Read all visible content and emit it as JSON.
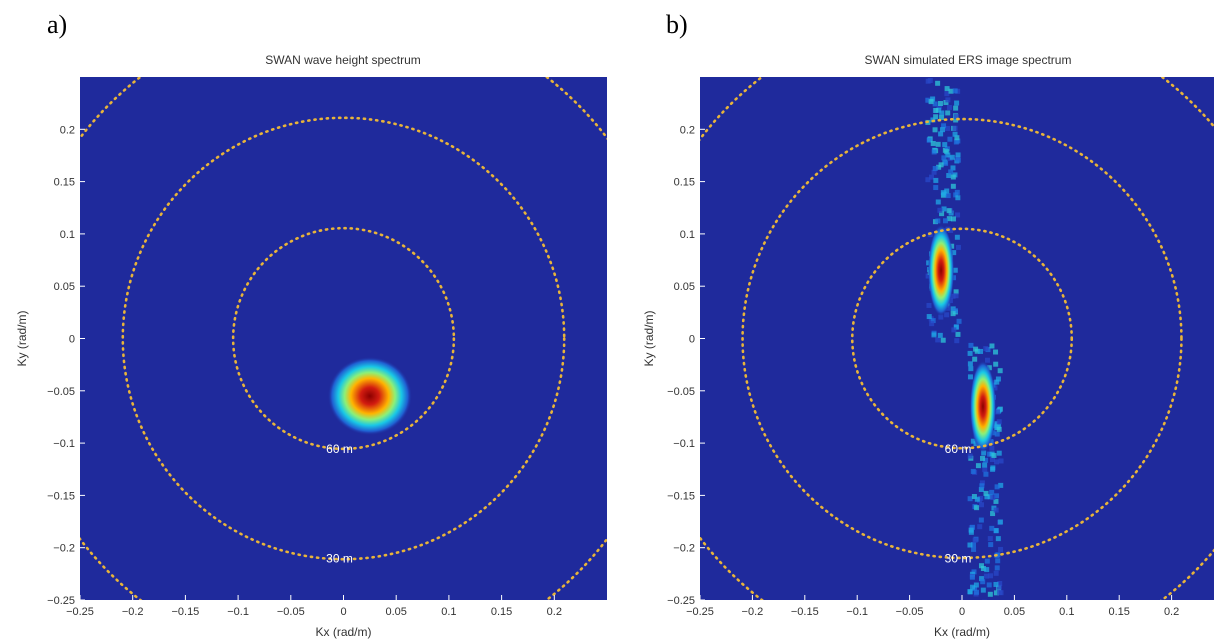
{
  "panels": [
    {
      "panel_label": "a)",
      "chart_data": {
        "type": "heatmap",
        "title": "SWAN wave height spectrum",
        "xlabel": "Kx (rad/m)",
        "ylabel": "Ky (rad/m)",
        "xlim": [
          -0.25,
          0.25
        ],
        "ylim": [
          -0.25,
          0.25
        ],
        "xticks": [
          "-0.25",
          "-0.2",
          "-0.15",
          "-0.1",
          "-0.05",
          "0",
          "0.05",
          "0.1",
          "0.15",
          "0.2"
        ],
        "yticks": [
          "0.2",
          "0.15",
          "0.1",
          "0.05",
          "0",
          "-0.05",
          "-0.1",
          "-0.15",
          "-0.2",
          "-0.25"
        ],
        "wavelength_circles": [
          {
            "label": "60 m",
            "k": 0.1047
          },
          {
            "label": "30 m",
            "k": 0.2094
          },
          {
            "label": "",
            "k": 0.3142
          }
        ],
        "energy_peaks": [
          {
            "kx": 0.025,
            "ky": -0.055,
            "rx": 0.032,
            "ry": 0.03,
            "intensity": 1.0
          }
        ]
      }
    },
    {
      "panel_label": "b)",
      "chart_data": {
        "type": "heatmap",
        "title": "SWAN simulated ERS image spectrum",
        "xlabel": "Kx (rad/m)",
        "ylabel": "Ky (rad/m)",
        "xlim": [
          -0.25,
          0.25
        ],
        "ylim": [
          -0.25,
          0.25
        ],
        "xticks": [
          "-0.25",
          "-0.2",
          "-0.15",
          "-0.1",
          "-0.05",
          "0",
          "0.05",
          "0.1",
          "0.15",
          "0.2"
        ],
        "yticks": [
          "0.2",
          "0.15",
          "0.1",
          "0.05",
          "0",
          "-0.05",
          "-0.1",
          "-0.15",
          "-0.2",
          "-0.25"
        ],
        "wavelength_circles": [
          {
            "label": "60 m",
            "k": 0.1047
          },
          {
            "label": "30 m",
            "k": 0.2094
          },
          {
            "label": "",
            "k": 0.3142
          }
        ],
        "energy_peaks": [
          {
            "kx": -0.02,
            "ky": 0.065,
            "rx": 0.01,
            "ry": 0.035,
            "intensity": 1.0
          },
          {
            "kx": 0.02,
            "ky": -0.065,
            "rx": 0.01,
            "ry": 0.035,
            "intensity": 1.0
          }
        ]
      }
    }
  ]
}
